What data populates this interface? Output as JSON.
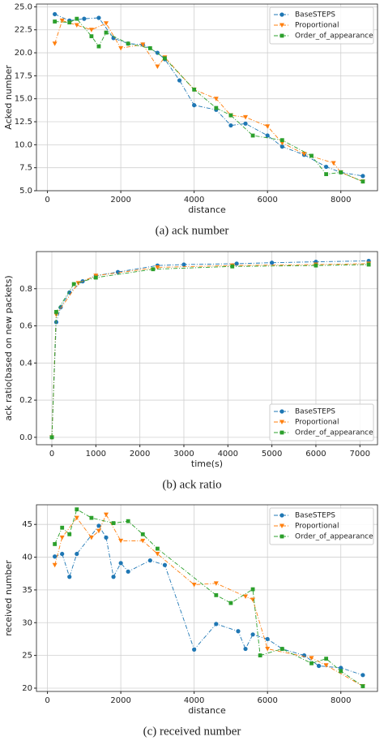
{
  "chart_data": [
    {
      "type": "line",
      "caption": "(a) ack number",
      "x_label": "distance",
      "y_label": "Acked number",
      "xlim": [
        -300,
        9000
      ],
      "xticks": [
        0,
        2000,
        4000,
        6000,
        8000
      ],
      "ylim": [
        5,
        25.3
      ],
      "yticks": [
        {
          "value": 5,
          "label": "5.0"
        },
        {
          "value": 7.5,
          "label": "7.5"
        },
        {
          "value": 10,
          "label": "10.0"
        },
        {
          "value": 12.5,
          "label": "12.5"
        },
        {
          "value": 15,
          "label": "15.0"
        },
        {
          "value": 17.5,
          "label": "17.5"
        },
        {
          "value": 20,
          "label": "20.0"
        },
        {
          "value": 22.5,
          "label": "22.5"
        },
        {
          "value": 25,
          "label": "25.0"
        }
      ],
      "grid": true,
      "legend": "upper right",
      "series": [
        {
          "name": "BaseSTEPS",
          "color": "#1f77b4",
          "marker": "circle",
          "x": [
            200,
            600,
            1000,
            1400,
            1800,
            2200,
            2600,
            3000,
            3200,
            3600,
            4000,
            4600,
            5000,
            5400,
            6000,
            6400,
            7000,
            7600,
            8000,
            8600
          ],
          "values": [
            24.2,
            23.5,
            23.7,
            23.8,
            21.6,
            21.0,
            20.9,
            20.0,
            19.3,
            17.0,
            14.3,
            13.8,
            12.1,
            12.3,
            11.0,
            9.8,
            8.9,
            7.6,
            7.0,
            6.6
          ]
        },
        {
          "name": "Proportional",
          "color": "#ff7f0e",
          "marker": "triangle",
          "x": [
            200,
            400,
            800,
            1200,
            1600,
            2000,
            2600,
            3000,
            3200,
            4000,
            4600,
            5000,
            5400,
            6000,
            6400,
            7000,
            7800,
            8000,
            8600
          ],
          "values": [
            21.0,
            23.5,
            23.0,
            22.5,
            23.2,
            20.5,
            20.9,
            18.5,
            19.5,
            16.0,
            15.0,
            13.2,
            13.0,
            12.0,
            10.2,
            9.0,
            8.0,
            7.0,
            6.0
          ]
        },
        {
          "name": "Order_of_appearance",
          "color": "#2ca02c",
          "marker": "square",
          "x": [
            200,
            600,
            800,
            1200,
            1400,
            1600,
            2200,
            2800,
            3200,
            4000,
            4600,
            5000,
            5600,
            6400,
            7200,
            7600,
            8000,
            8600
          ],
          "values": [
            23.4,
            23.3,
            23.7,
            21.8,
            20.7,
            22.2,
            21.0,
            20.5,
            19.4,
            16.0,
            14.0,
            13.2,
            11.0,
            10.5,
            8.8,
            6.8,
            7.0,
            6.0
          ]
        }
      ]
    },
    {
      "type": "line",
      "caption": "(b) ack ratio",
      "x_label": "time(s)",
      "y_label": "ack ratio(based on new packets)",
      "xlim": [
        -350,
        7400
      ],
      "xticks": [
        0,
        1000,
        2000,
        3000,
        4000,
        5000,
        6000,
        7000
      ],
      "ylim": [
        -0.04,
        1.0
      ],
      "yticks": [
        {
          "value": 0,
          "label": "0.0"
        },
        {
          "value": 0.2,
          "label": "0.2"
        },
        {
          "value": 0.4,
          "label": "0.4"
        },
        {
          "value": 0.6,
          "label": "0.6"
        },
        {
          "value": 0.8,
          "label": "0.8"
        }
      ],
      "grid": true,
      "legend": "lower right",
      "series": [
        {
          "name": "BaseSTEPS",
          "color": "#1f77b4",
          "marker": "circle",
          "x": [
            0,
            100,
            200,
            400,
            700,
            1000,
            1500,
            2400,
            3000,
            4200,
            5000,
            6000,
            7200
          ],
          "values": [
            0,
            0.62,
            0.7,
            0.78,
            0.84,
            0.87,
            0.89,
            0.925,
            0.93,
            0.935,
            0.94,
            0.945,
            0.95
          ]
        },
        {
          "name": "Proportional",
          "color": "#ff7f0e",
          "marker": "triangle",
          "x": [
            0,
            100,
            600,
            1000,
            2400,
            4100,
            6000,
            7200
          ],
          "values": [
            0,
            0.66,
            0.83,
            0.87,
            0.915,
            0.925,
            0.93,
            0.935
          ]
        },
        {
          "name": "Order_of_appearance",
          "color": "#2ca02c",
          "marker": "square",
          "x": [
            0,
            100,
            500,
            1000,
            2300,
            4100,
            6000,
            7200
          ],
          "values": [
            0,
            0.675,
            0.825,
            0.86,
            0.905,
            0.92,
            0.925,
            0.93
          ]
        }
      ]
    },
    {
      "type": "line",
      "caption": "(c) received number",
      "x_label": "distance",
      "y_label": "received number",
      "xlim": [
        -300,
        9000
      ],
      "xticks": [
        0,
        2000,
        4000,
        6000,
        8000
      ],
      "ylim": [
        19.5,
        48
      ],
      "yticks": [
        20,
        25,
        30,
        35,
        40,
        45
      ],
      "grid": true,
      "legend": "upper right",
      "series": [
        {
          "name": "BaseSTEPS",
          "color": "#1f77b4",
          "marker": "circle",
          "x": [
            200,
            400,
            600,
            800,
            1400,
            1600,
            1800,
            2000,
            2200,
            2800,
            3200,
            4000,
            4600,
            5200,
            5400,
            5600,
            6000,
            6400,
            7000,
            7400,
            8000,
            8600
          ],
          "values": [
            40.1,
            40.5,
            37.0,
            40.5,
            44.8,
            43.0,
            37.0,
            39.1,
            37.8,
            39.5,
            38.8,
            25.9,
            29.8,
            28.7,
            26.0,
            28.2,
            27.5,
            26.0,
            25.0,
            23.4,
            23.1,
            22.0
          ]
        },
        {
          "name": "Proportional",
          "color": "#ff7f0e",
          "marker": "triangle",
          "x": [
            200,
            400,
            800,
            1200,
            1400,
            1600,
            2000,
            2600,
            3000,
            4000,
            4600,
            5400,
            5600,
            6000,
            7200,
            7600,
            8600
          ],
          "values": [
            38.8,
            43.0,
            46.0,
            43.0,
            44.0,
            46.5,
            42.5,
            42.5,
            40.5,
            35.8,
            36.0,
            34.0,
            33.5,
            26.0,
            24.6,
            23.5,
            20.3
          ]
        },
        {
          "name": "Order_of_appearance",
          "color": "#2ca02c",
          "marker": "square",
          "x": [
            200,
            400,
            600,
            800,
            1200,
            1800,
            2200,
            2600,
            3000,
            4600,
            5000,
            5600,
            5800,
            6400,
            7200,
            7600,
            8000,
            8600
          ],
          "values": [
            42.0,
            44.5,
            43.5,
            47.3,
            46.0,
            45.2,
            45.5,
            43.5,
            41.3,
            34.2,
            33.0,
            35.1,
            25.0,
            26.0,
            23.8,
            24.5,
            22.6,
            20.3
          ]
        }
      ]
    }
  ]
}
